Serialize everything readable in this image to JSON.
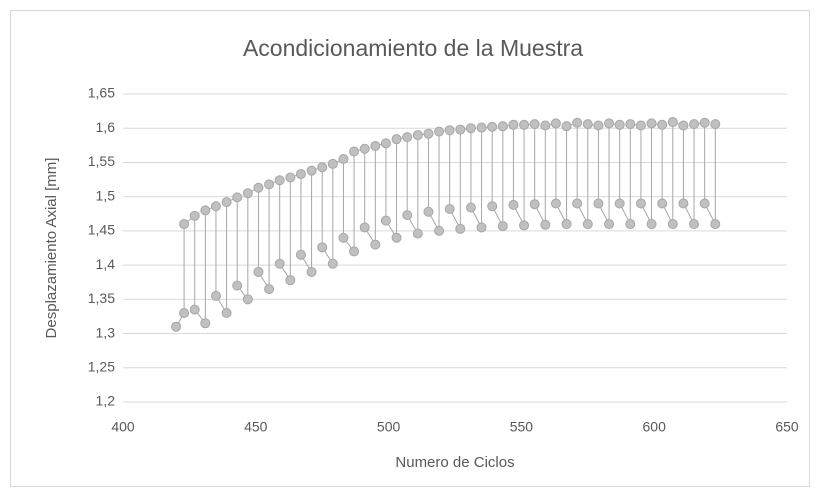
{
  "chart_data": {
    "type": "scatter-line",
    "title": "Acondicionamiento de la Muestra",
    "xlabel": "Numero de Ciclos",
    "ylabel": "Desplazamiento Axial [mm]",
    "color": "#a6a6a6",
    "marker_fill": "#c0c0c0",
    "grid": true,
    "xlim": [
      400,
      650
    ],
    "xticks": [
      400,
      450,
      500,
      550,
      600,
      650
    ],
    "ylim": [
      1.2,
      1.65
    ],
    "yticks": [
      {
        "value": 1.2,
        "label": "1,2"
      },
      {
        "value": 1.25,
        "label": "1,25"
      },
      {
        "value": 1.3,
        "label": "1,3"
      },
      {
        "value": 1.35,
        "label": "1,35"
      },
      {
        "value": 1.4,
        "label": "1,4"
      },
      {
        "value": 1.45,
        "label": "1,45"
      },
      {
        "value": 1.5,
        "label": "1,5"
      },
      {
        "value": 1.55,
        "label": "1,55"
      },
      {
        "value": 1.6,
        "label": "1,6"
      },
      {
        "value": 1.65,
        "label": "1,65"
      }
    ],
    "x": [
      420,
      423,
      423,
      427,
      427,
      431,
      431,
      435,
      435,
      439,
      439,
      443,
      443,
      447,
      447,
      451,
      451,
      455,
      455,
      459,
      459,
      463,
      463,
      467,
      467,
      471,
      471,
      475,
      475,
      479,
      479,
      483,
      483,
      487,
      487,
      491,
      491,
      495,
      495,
      499,
      499,
      503,
      503,
      507,
      507,
      511,
      511,
      515,
      515,
      519,
      519,
      523,
      523,
      527,
      527,
      531,
      531,
      535,
      535,
      539,
      539,
      543,
      543,
      547,
      547,
      551,
      551,
      555,
      555,
      559,
      559,
      563,
      563,
      567,
      567,
      571,
      571,
      575,
      575,
      579,
      579,
      583,
      583,
      587,
      587,
      591,
      591,
      595,
      595,
      599,
      599,
      603,
      603,
      607,
      607,
      611,
      611,
      615,
      615,
      619,
      619,
      623,
      623
    ],
    "values": [
      1.31,
      1.33,
      1.46,
      1.472,
      1.335,
      1.315,
      1.48,
      1.486,
      1.355,
      1.33,
      1.492,
      1.499,
      1.37,
      1.35,
      1.505,
      1.513,
      1.39,
      1.365,
      1.518,
      1.524,
      1.402,
      1.378,
      1.528,
      1.533,
      1.415,
      1.39,
      1.538,
      1.543,
      1.426,
      1.402,
      1.548,
      1.555,
      1.44,
      1.42,
      1.566,
      1.57,
      1.455,
      1.43,
      1.574,
      1.578,
      1.465,
      1.44,
      1.584,
      1.587,
      1.473,
      1.446,
      1.59,
      1.592,
      1.478,
      1.45,
      1.595,
      1.597,
      1.482,
      1.453,
      1.598,
      1.6,
      1.484,
      1.455,
      1.601,
      1.602,
      1.486,
      1.457,
      1.603,
      1.605,
      1.488,
      1.458,
      1.605,
      1.606,
      1.489,
      1.459,
      1.604,
      1.607,
      1.49,
      1.46,
      1.603,
      1.608,
      1.49,
      1.46,
      1.606,
      1.604,
      1.49,
      1.46,
      1.607,
      1.605,
      1.49,
      1.46,
      1.606,
      1.604,
      1.49,
      1.46,
      1.607,
      1.605,
      1.49,
      1.46,
      1.609,
      1.604,
      1.49,
      1.46,
      1.606,
      1.608,
      1.49,
      1.46,
      1.606
    ]
  }
}
